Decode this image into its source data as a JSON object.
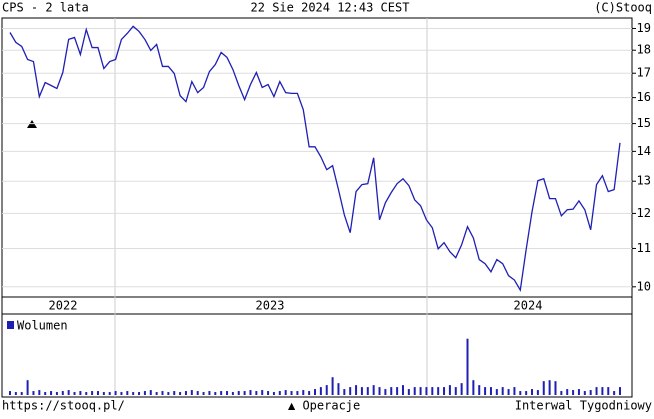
{
  "chart_data": {
    "type": "line",
    "title": "CPS - 2 lata",
    "timestamp": "22 Sie 2024 12:43 CEST",
    "source": "(C)Stooq",
    "x_labels": [
      "2022",
      "2023",
      "2024"
    ],
    "log_scale": true,
    "grid": true,
    "ylim": [
      9.75,
      19.5
    ],
    "yticks": [
      10,
      11,
      12,
      13,
      14,
      15,
      16,
      17,
      18,
      19
    ],
    "series": [
      {
        "color": "#1f1fb4",
        "values": [
          18.81,
          18.35,
          18.17,
          17.59,
          17.5,
          16.04,
          16.61,
          16.49,
          16.37,
          17.03,
          18.49,
          18.58,
          17.81,
          18.95,
          18.12,
          18.12,
          17.2,
          17.5,
          17.59,
          18.49,
          18.77,
          19.1,
          18.86,
          18.49,
          17.99,
          18.26,
          17.29,
          17.29,
          16.99,
          16.08,
          15.84,
          16.65,
          16.2,
          16.41,
          17.07,
          17.37,
          17.9,
          17.68,
          17.16,
          16.49,
          15.92,
          16.53,
          17.03,
          16.41,
          16.53,
          16.04,
          16.65,
          16.2,
          16.17,
          16.17,
          15.53,
          14.16,
          14.16,
          13.81,
          13.38,
          13.51,
          12.73,
          11.96,
          11.44,
          12.67,
          12.89,
          12.92,
          13.78,
          11.81,
          12.32,
          12.64,
          12.92,
          13.08,
          12.86,
          12.41,
          12.23,
          11.81,
          11.58,
          10.99,
          11.16,
          10.91,
          10.75,
          11.1,
          11.61,
          11.29,
          10.7,
          10.59,
          10.38,
          10.7,
          10.59,
          10.28,
          10.17,
          9.92,
          10.97,
          12.05,
          13.02,
          13.08,
          12.45,
          12.45,
          11.93,
          12.11,
          12.13,
          12.38,
          12.11,
          11.52,
          12.89,
          13.18,
          12.67,
          12.73,
          14.3
        ]
      }
    ],
    "volume": {
      "type": "bar",
      "name": "Wolumen",
      "color": "#1f1fb4",
      "ylim": [
        0,
        80
      ],
      "values": [
        4,
        3,
        3,
        15,
        4,
        5,
        3,
        4,
        3,
        4,
        5,
        3,
        4,
        3,
        4,
        4,
        3,
        3,
        4,
        3,
        4,
        3,
        3,
        4,
        5,
        3,
        4,
        3,
        4,
        3,
        4,
        5,
        4,
        3,
        4,
        3,
        4,
        4,
        3,
        4,
        4,
        5,
        4,
        5,
        4,
        3,
        4,
        5,
        4,
        4,
        5,
        4,
        6,
        8,
        10,
        18,
        12,
        6,
        8,
        10,
        8,
        8,
        10,
        8,
        6,
        8,
        8,
        10,
        6,
        8,
        8,
        8,
        8,
        8,
        8,
        10,
        8,
        12,
        57,
        15,
        10,
        8,
        8,
        6,
        8,
        6,
        8,
        4,
        4,
        6,
        5,
        14,
        15,
        14,
        4,
        6,
        5,
        6,
        4,
        5,
        8,
        8,
        8,
        4,
        8
      ]
    },
    "footer": {
      "url": "https://stooq.pl/",
      "marker_label": "▲ Operacje",
      "interval": "Interwal Tygodniowy"
    }
  }
}
